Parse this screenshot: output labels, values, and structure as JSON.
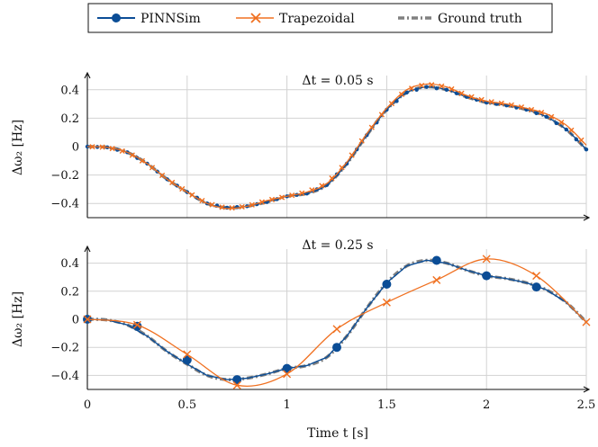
{
  "legend": {
    "items": [
      {
        "label": "PINNSim",
        "color": "#0b4d96",
        "marker": "circle"
      },
      {
        "label": "Trapezoidal",
        "color": "#f07020",
        "marker": "cross"
      },
      {
        "label": "Ground truth",
        "color": "#808080",
        "marker": "dashdot"
      }
    ]
  },
  "xlabel": "Time t [s]",
  "chart_data": [
    {
      "type": "line",
      "title": "Δt = 0.05 s",
      "ylabel": "Δω₂ [Hz]",
      "xlim": [
        0,
        2.5
      ],
      "ylim": [
        -0.5,
        0.5
      ],
      "yticks": [
        -0.4,
        -0.2,
        0,
        0.2,
        0.4
      ],
      "xticks": [
        0,
        0.5,
        1,
        1.5,
        2,
        2.5
      ],
      "show_xtick_labels": false,
      "grid": true,
      "series": [
        {
          "name": "Ground truth",
          "x": [
            0,
            0.1,
            0.2,
            0.3,
            0.4,
            0.5,
            0.6,
            0.7,
            0.8,
            0.9,
            1.0,
            1.1,
            1.2,
            1.3,
            1.4,
            1.5,
            1.6,
            1.7,
            1.8,
            1.9,
            2.0,
            2.1,
            2.2,
            2.3,
            2.4,
            2.5
          ],
          "y": [
            0,
            -0.005,
            -0.04,
            -0.12,
            -0.23,
            -0.32,
            -0.4,
            -0.43,
            -0.42,
            -0.39,
            -0.35,
            -0.33,
            -0.27,
            -0.12,
            0.08,
            0.26,
            0.38,
            0.42,
            0.4,
            0.35,
            0.31,
            0.29,
            0.26,
            0.21,
            0.12,
            -0.02
          ]
        },
        {
          "name": "PINNSim",
          "x": [
            0,
            0.1,
            0.2,
            0.3,
            0.4,
            0.5,
            0.6,
            0.7,
            0.8,
            0.9,
            1.0,
            1.1,
            1.2,
            1.3,
            1.4,
            1.5,
            1.6,
            1.7,
            1.8,
            1.9,
            2.0,
            2.1,
            2.2,
            2.3,
            2.4,
            2.5
          ],
          "y": [
            0,
            -0.005,
            -0.04,
            -0.12,
            -0.23,
            -0.32,
            -0.4,
            -0.43,
            -0.42,
            -0.39,
            -0.35,
            -0.33,
            -0.27,
            -0.12,
            0.08,
            0.26,
            0.38,
            0.42,
            0.4,
            0.35,
            0.31,
            0.29,
            0.26,
            0.21,
            0.12,
            -0.02
          ]
        },
        {
          "name": "Trapezoidal",
          "x": [
            0,
            0.1,
            0.2,
            0.3,
            0.4,
            0.5,
            0.6,
            0.7,
            0.8,
            0.9,
            1.0,
            1.1,
            1.2,
            1.3,
            1.4,
            1.5,
            1.6,
            1.7,
            1.8,
            1.9,
            2.0,
            2.1,
            2.2,
            2.3,
            2.4,
            2.5
          ],
          "y": [
            0,
            -0.005,
            -0.04,
            -0.12,
            -0.23,
            -0.32,
            -0.4,
            -0.435,
            -0.42,
            -0.38,
            -0.35,
            -0.32,
            -0.26,
            -0.11,
            0.09,
            0.27,
            0.4,
            0.44,
            0.42,
            0.36,
            0.32,
            0.3,
            0.27,
            0.23,
            0.15,
            0.01
          ]
        }
      ]
    },
    {
      "type": "line",
      "title": "Δt = 0.25 s",
      "ylabel": "Δω₂ [Hz]",
      "xlim": [
        0,
        2.5
      ],
      "ylim": [
        -0.5,
        0.5
      ],
      "yticks": [
        -0.4,
        -0.2,
        0,
        0.2,
        0.4
      ],
      "xticks": [
        0,
        0.5,
        1,
        1.5,
        2,
        2.5
      ],
      "show_xtick_labels": true,
      "grid": true,
      "series": [
        {
          "name": "Ground truth",
          "x": [
            0,
            0.1,
            0.2,
            0.3,
            0.4,
            0.5,
            0.6,
            0.7,
            0.8,
            0.9,
            1.0,
            1.1,
            1.2,
            1.3,
            1.4,
            1.5,
            1.6,
            1.7,
            1.8,
            1.9,
            2.0,
            2.1,
            2.2,
            2.3,
            2.4,
            2.5
          ],
          "y": [
            0,
            -0.005,
            -0.04,
            -0.12,
            -0.23,
            -0.32,
            -0.4,
            -0.43,
            -0.42,
            -0.39,
            -0.35,
            -0.33,
            -0.27,
            -0.12,
            0.08,
            0.26,
            0.38,
            0.42,
            0.4,
            0.35,
            0.31,
            0.29,
            0.26,
            0.21,
            0.12,
            -0.02
          ]
        },
        {
          "name": "PINNSim",
          "x": [
            0,
            0.25,
            0.5,
            0.75,
            1.0,
            1.25,
            1.5,
            1.75,
            2.0,
            2.25
          ],
          "y": [
            0,
            -0.05,
            -0.29,
            -0.43,
            -0.35,
            -0.2,
            0.25,
            0.42,
            0.31,
            0.23
          ]
        },
        {
          "name": "Trapezoidal",
          "x": [
            0,
            0.25,
            0.5,
            0.75,
            1.0,
            1.25,
            1.5,
            1.75,
            2.0,
            2.25,
            2.5
          ],
          "y": [
            0,
            -0.04,
            -0.25,
            -0.47,
            -0.39,
            -0.07,
            0.12,
            0.28,
            0.43,
            0.31,
            -0.02
          ]
        }
      ]
    }
  ]
}
